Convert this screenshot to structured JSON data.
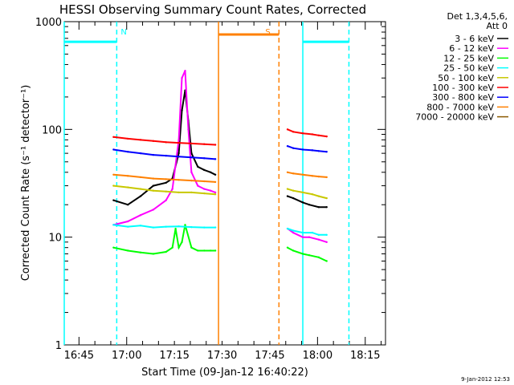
{
  "chart_data": {
    "type": "line",
    "title": "HESSI Observing Summary Count Rates, Corrected",
    "xlabel": "Start Time (09-Jan-12 16:40:22)",
    "ylabel": "Corrected Count Rate (s⁻¹ detector⁻¹)",
    "yscale": "log",
    "ylim": [
      1,
      1000
    ],
    "xlim_minutes_after_16_40_22": [
      0,
      101
    ],
    "x_unit": "minutes after 16:40:22",
    "ytick_labels": [
      {
        "value": 1000,
        "label": "1000"
      },
      {
        "value": 100,
        "label": "100"
      },
      {
        "value": 10,
        "label": "10"
      },
      {
        "value": 1,
        "label": "1"
      }
    ],
    "xtick_labels": [
      {
        "value": 4.63,
        "label": "16:45"
      },
      {
        "value": 19.63,
        "label": "17:00"
      },
      {
        "value": 34.63,
        "label": "17:15"
      },
      {
        "value": 49.63,
        "label": "17:30"
      },
      {
        "value": 64.63,
        "label": "17:45"
      },
      {
        "value": 79.63,
        "label": "18:00"
      },
      {
        "value": 94.63,
        "label": "18:15"
      }
    ],
    "legend": {
      "placement": "right",
      "header": [
        "Det 1,3,4,5,6,",
        "Att 0"
      ]
    },
    "series": [
      {
        "name": "3 - 6 keV",
        "color": "#000000",
        "x": [
          15.5,
          20,
          24,
          28,
          32,
          34,
          36,
          37,
          38,
          39,
          40,
          42,
          44,
          46,
          47.5,
          70.2,
          72,
          75,
          77,
          80,
          82.5
        ],
        "y": [
          22,
          20,
          24,
          30,
          32,
          35,
          60,
          150,
          230,
          120,
          60,
          45,
          42,
          40,
          38,
          24,
          23,
          21,
          20,
          19,
          19
        ]
      },
      {
        "name": "6 - 12 keV",
        "color": "#ff00ff",
        "x": [
          15.5,
          20,
          24,
          28,
          32,
          34,
          36,
          37,
          38,
          39,
          40,
          42,
          44,
          46,
          47.5,
          70.2,
          72,
          75,
          77,
          80,
          82.5
        ],
        "y": [
          13,
          14,
          16,
          18,
          22,
          28,
          80,
          300,
          350,
          100,
          40,
          30,
          28,
          27,
          26,
          12,
          11,
          10,
          10,
          9.5,
          9
        ]
      },
      {
        "name": "12 - 25 keV",
        "color": "#00ff00",
        "x": [
          15.5,
          20,
          24,
          28,
          32,
          34,
          35,
          36,
          37,
          38,
          40,
          42,
          44,
          46,
          47.5,
          70.2,
          72,
          75,
          77,
          80,
          82.5
        ],
        "y": [
          8,
          7.5,
          7.2,
          7,
          7.3,
          8,
          12,
          8,
          9,
          13,
          8,
          7.5,
          7.5,
          7.5,
          7.5,
          8,
          7.5,
          7,
          6.8,
          6.5,
          6
        ]
      },
      {
        "name": "25 - 50 keV",
        "color": "#00ffff",
        "x": [
          15.5,
          20,
          24,
          28,
          32,
          36,
          40,
          44,
          47.5,
          70.2,
          72,
          75,
          78,
          80,
          82.5
        ],
        "y": [
          13,
          12.5,
          12.8,
          12.3,
          12.5,
          12.6,
          12.4,
          12.3,
          12.3,
          12,
          11.5,
          11,
          11,
          10.5,
          10.5
        ]
      },
      {
        "name": "50 - 100 keV",
        "color": "#c8c800",
        "x": [
          15.5,
          20,
          24,
          28,
          32,
          36,
          40,
          44,
          47.5,
          70.2,
          72,
          75,
          78,
          80,
          82.5
        ],
        "y": [
          30,
          29,
          28,
          27,
          26.5,
          26,
          26,
          25.5,
          25,
          28,
          27,
          26,
          25,
          24,
          23
        ]
      },
      {
        "name": "100 - 300 keV",
        "color": "#ff0000",
        "x": [
          15.5,
          20,
          24,
          28,
          32,
          36,
          40,
          44,
          47.5,
          70.2,
          72,
          75,
          78,
          80,
          82.5
        ],
        "y": [
          85,
          82,
          80,
          78,
          76,
          75,
          74,
          73,
          72,
          100,
          95,
          92,
          90,
          88,
          86
        ]
      },
      {
        "name": "300 - 800 keV",
        "color": "#0000ff",
        "x": [
          15.5,
          20,
          24,
          28,
          32,
          36,
          40,
          44,
          47.5,
          70.2,
          72,
          75,
          78,
          80,
          82.5
        ],
        "y": [
          65,
          62,
          60,
          58,
          57,
          56,
          55,
          54,
          53,
          70,
          67,
          65,
          64,
          63,
          62
        ]
      },
      {
        "name": "800 - 7000 keV",
        "color": "#ff8000",
        "x": [
          15.5,
          20,
          24,
          28,
          32,
          36,
          40,
          44,
          47.5,
          70.2,
          72,
          75,
          78,
          80,
          82.5
        ],
        "y": [
          38,
          37,
          36,
          35,
          34.5,
          34,
          33.5,
          33,
          32.5,
          40,
          39,
          38,
          37,
          36.5,
          36
        ]
      },
      {
        "name": "7000 - 20000 keV",
        "color": "#8b5a00",
        "x": [],
        "y": []
      }
    ],
    "intervals": [
      {
        "label": "N",
        "color": "#00ffff",
        "x": [
          0,
          16.5
        ],
        "level": 650
      },
      {
        "label": "S",
        "color": "#ff8000",
        "x": [
          48.5,
          67.5
        ],
        "level": 760
      },
      {
        "label": "",
        "color": "#00ffff",
        "x": [
          75,
          89.5
        ],
        "level": 650
      }
    ],
    "markers": [
      {
        "color": "#00ffff",
        "style": "solid",
        "x": 0
      },
      {
        "color": "#00ffff",
        "style": "dashed",
        "x": 16.5
      },
      {
        "color": "#ff8000",
        "style": "solid",
        "x": 48.5
      },
      {
        "color": "#ff8000",
        "style": "dashed",
        "x": 67.5
      },
      {
        "color": "#00ffff",
        "style": "solid",
        "x": 75
      },
      {
        "color": "#00ffff",
        "style": "dashed",
        "x": 89.5
      }
    ],
    "footer_timestamp": "9-Jan-2012 12:53"
  }
}
